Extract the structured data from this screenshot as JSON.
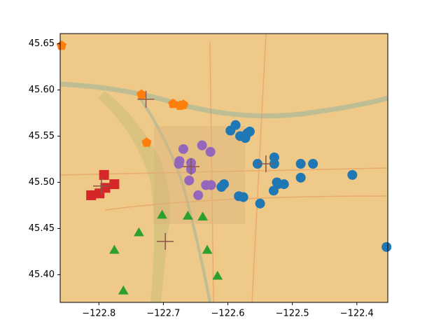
{
  "chart_data": {
    "type": "scatter",
    "xlim": [
      -122.86,
      -122.352
    ],
    "ylim": [
      45.37,
      45.661
    ],
    "xticks": [
      {
        "value": -122.8,
        "label": "−122.8"
      },
      {
        "value": -122.7,
        "label": "−122.7"
      },
      {
        "value": -122.6,
        "label": "−122.6"
      },
      {
        "value": -122.5,
        "label": "−122.5"
      },
      {
        "value": -122.4,
        "label": "−122.4"
      }
    ],
    "yticks": [
      {
        "value": 45.4,
        "label": "45.40"
      },
      45.45,
      {
        "value": 45.5,
        "label": "45.50"
      },
      45.55,
      {
        "value": 45.6,
        "label": "45.60"
      },
      45.65
    ],
    "series": [
      {
        "color": "#1f77b4",
        "marker": "circle",
        "x": [
          -122.588,
          -122.596,
          -122.581,
          -122.573,
          -122.57,
          -122.566,
          -122.554,
          -122.528,
          -122.528,
          -122.524,
          -122.55,
          -122.522,
          -122.513,
          -122.583,
          -122.576,
          -122.606,
          -122.61,
          -122.529,
          -122.487,
          -122.468,
          -122.487,
          -122.407,
          -122.354
        ],
        "y": [
          45.562,
          45.556,
          45.55,
          45.548,
          45.553,
          45.555,
          45.52,
          45.527,
          45.52,
          45.5,
          45.477,
          45.498,
          45.498,
          45.485,
          45.484,
          45.498,
          45.495,
          45.491,
          45.52,
          45.52,
          45.505,
          45.508,
          45.43
        ]
      },
      {
        "color": "#ff7f0e",
        "marker": "pentagon",
        "x": [
          -122.858,
          -122.734,
          -122.726,
          -122.685,
          -122.674,
          -122.669
        ],
        "y": [
          45.648,
          45.595,
          45.543,
          45.585,
          45.583,
          45.584
        ]
      },
      {
        "color": "#2ca02c",
        "marker": "triangle",
        "x": [
          -122.702,
          -122.738,
          -122.776,
          -122.762,
          -122.662,
          -122.639,
          -122.632,
          -122.616
        ],
        "y": [
          45.465,
          45.446,
          45.427,
          45.383,
          45.464,
          45.463,
          45.427,
          45.399
        ]
      },
      {
        "color": "#d62728",
        "marker": "square",
        "x": [
          -122.812,
          -122.799,
          -122.79,
          -122.792,
          -122.776
        ],
        "y": [
          45.486,
          45.488,
          45.494,
          45.508,
          45.498
        ]
      },
      {
        "color": "#9467bd",
        "marker": "circle",
        "x": [
          -122.669,
          -122.64,
          -122.627,
          -122.675,
          -122.676,
          -122.657,
          -122.657,
          -122.66,
          -122.646,
          -122.634,
          -122.626
        ],
        "y": [
          45.536,
          45.54,
          45.533,
          45.523,
          45.52,
          45.521,
          45.514,
          45.502,
          45.486,
          45.497,
          45.497
        ]
      },
      {
        "color": "#8c564b",
        "marker": "plus",
        "x": [
          -122.727,
          -122.796,
          -122.697,
          -122.657,
          -122.541
        ],
        "y": [
          45.59,
          45.496,
          45.436,
          45.517,
          45.52
        ]
      }
    ]
  }
}
